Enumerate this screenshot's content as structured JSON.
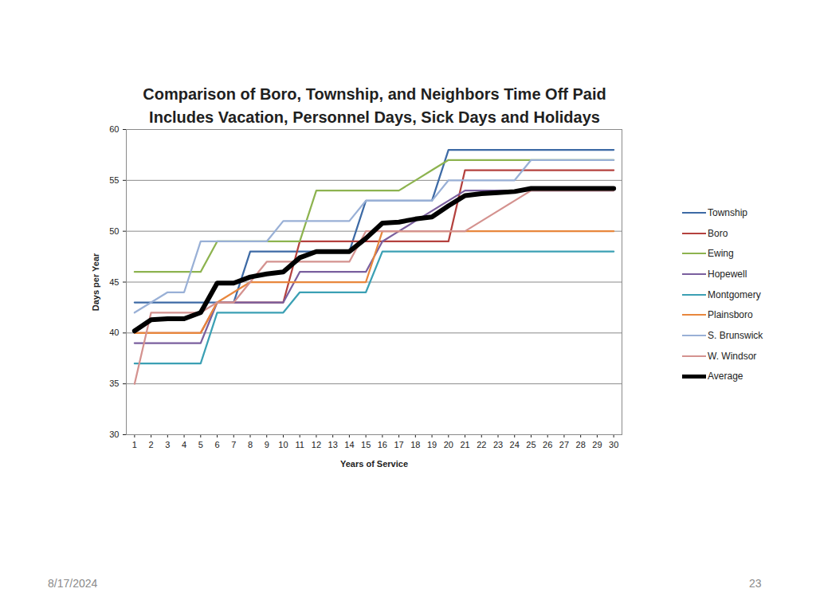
{
  "chart_data": {
    "type": "line",
    "title": "Comparison of Boro, Township, and Neighbors Time Off Paid",
    "subtitle": "Includes Vacation, Personnel Days, Sick Days and Holidays",
    "x_label": "Years of Service",
    "y_label": "Days per Year",
    "x": [
      1,
      2,
      3,
      4,
      5,
      6,
      7,
      8,
      9,
      10,
      11,
      12,
      13,
      14,
      15,
      16,
      17,
      18,
      19,
      20,
      21,
      22,
      23,
      24,
      25,
      26,
      27,
      28,
      29,
      30
    ],
    "xlim": [
      0.5,
      30.5
    ],
    "xticks": [
      1,
      2,
      3,
      4,
      5,
      6,
      7,
      8,
      9,
      10,
      11,
      12,
      13,
      14,
      15,
      16,
      17,
      18,
      19,
      20,
      21,
      22,
      23,
      24,
      25,
      26,
      27,
      28,
      29,
      30
    ],
    "ylim": [
      30,
      60
    ],
    "yticks": [
      30,
      35,
      40,
      45,
      50,
      55,
      60
    ],
    "grid": true,
    "legend": "right",
    "series": [
      {
        "name": "Township",
        "color": "#3d6aa5",
        "values": [
          43,
          43,
          43,
          43,
          43,
          43,
          43,
          48,
          48,
          48,
          48,
          48,
          48,
          48,
          53,
          53,
          53,
          53,
          53,
          58,
          58,
          58,
          58,
          58,
          58,
          58,
          58,
          58,
          58,
          58
        ]
      },
      {
        "name": "Boro",
        "color": "#b4413e",
        "values": [
          40,
          40,
          40,
          40,
          40,
          43,
          43,
          43,
          43,
          43,
          49,
          49,
          49,
          49,
          49,
          49,
          49,
          49,
          49,
          49,
          56,
          56,
          56,
          56,
          56,
          56,
          56,
          56,
          56,
          56
        ]
      },
      {
        "name": "Ewing",
        "color": "#8db34f",
        "values": [
          46,
          46,
          46,
          46,
          46,
          49,
          49,
          49,
          49,
          49,
          49,
          54,
          54,
          54,
          54,
          54,
          54,
          55,
          56,
          57,
          57,
          57,
          57,
          57,
          57,
          57,
          57,
          57,
          57,
          57
        ]
      },
      {
        "name": "Hopewell",
        "color": "#7a5f9e",
        "values": [
          39,
          39,
          39,
          39,
          39,
          43,
          43,
          43,
          43,
          43,
          46,
          46,
          46,
          46,
          46,
          49,
          50,
          51,
          52,
          53,
          54,
          54,
          54,
          54,
          54,
          54,
          54,
          54,
          54,
          54
        ]
      },
      {
        "name": "Montgomery",
        "color": "#3ba0b4",
        "values": [
          37,
          37,
          37,
          37,
          37,
          42,
          42,
          42,
          42,
          42,
          44,
          44,
          44,
          44,
          44,
          48,
          48,
          48,
          48,
          48,
          48,
          48,
          48,
          48,
          48,
          48,
          48,
          48,
          48,
          48
        ]
      },
      {
        "name": "Plainsboro",
        "color": "#e8873d",
        "values": [
          40,
          40,
          40,
          40,
          40,
          43,
          44,
          45,
          45,
          45,
          45,
          45,
          45,
          45,
          45,
          50,
          50,
          50,
          50,
          50,
          50,
          50,
          50,
          50,
          50,
          50,
          50,
          50,
          50,
          50
        ]
      },
      {
        "name": "S. Brunswick",
        "color": "#99b0d6",
        "values": [
          42,
          43,
          44,
          44,
          49,
          49,
          49,
          49,
          49,
          51,
          51,
          51,
          51,
          51,
          53,
          53,
          53,
          53,
          53,
          55,
          55,
          55,
          55,
          55,
          57,
          57,
          57,
          57,
          57,
          57
        ]
      },
      {
        "name": "W. Windsor",
        "color": "#d4928f",
        "values": [
          35,
          42,
          42,
          42,
          42,
          43,
          43,
          45,
          47,
          47,
          47,
          47,
          47,
          47,
          50,
          50,
          50,
          50,
          50,
          50,
          50,
          51,
          52,
          53,
          54,
          54,
          54,
          54,
          54,
          54
        ]
      },
      {
        "name": "Average",
        "color": "#000000",
        "line_style": "bold",
        "values": [
          40.2,
          41.3,
          41.4,
          41.4,
          42,
          44.9,
          44.9,
          45.5,
          45.8,
          46,
          47.4,
          48,
          48,
          48,
          49.3,
          50.8,
          50.9,
          51.2,
          51.4,
          52.5,
          53.5,
          53.7,
          53.8,
          53.9,
          54.2,
          54.2,
          54.2,
          54.2,
          54.2,
          54.2
        ]
      }
    ]
  },
  "page": {
    "date": "8/17/2024",
    "number": "23"
  }
}
